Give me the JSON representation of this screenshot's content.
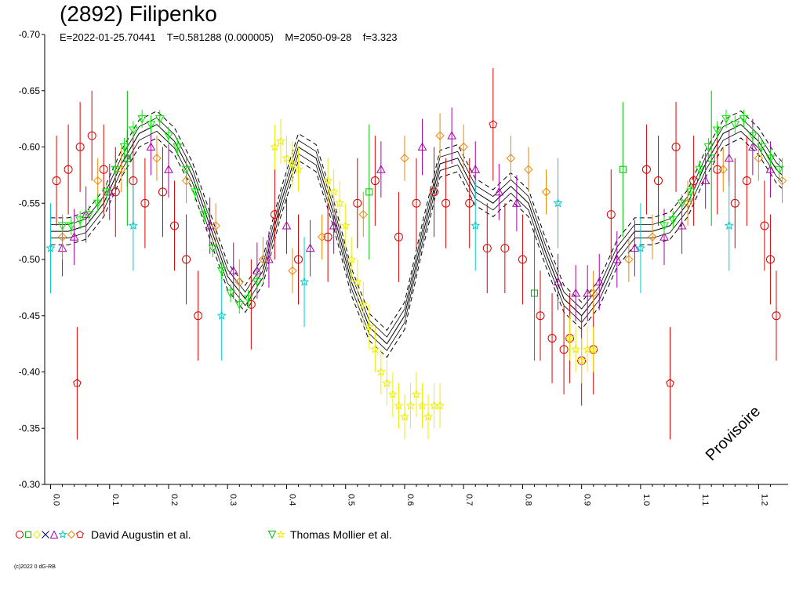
{
  "header": {
    "title": "(2892) Filipenko",
    "subtitle": "E=2022-01-25.70441    T=0.581288 (0.000005)    M=2050-09-28    f=3.323"
  },
  "stamp": "Provisoire",
  "copyright": "(c)2022 0 dG-RB",
  "legend": [
    {
      "label": "David Augustin et al.",
      "markers": [
        "circle",
        "square",
        "diamond",
        "x",
        "triangle",
        "star",
        "diamond",
        "pentagon"
      ],
      "colors": [
        "#dd0000",
        "#00bb00",
        "#eeee00",
        "#000088",
        "#aa00aa",
        "#00cccc",
        "#ee8800",
        "#dd0000"
      ]
    },
    {
      "label": "Thomas Mollier et al.",
      "markers": [
        "triangle-down",
        "star"
      ],
      "colors": [
        "#00bb00",
        "#eeee00"
      ]
    }
  ],
  "chart_data": {
    "type": "scatter",
    "title": "(2892) Filipenko",
    "xlim": [
      -0.01,
      1.25
    ],
    "ylim": [
      -0.7,
      -0.3
    ],
    "y_inverted": true,
    "x_ticks": [
      "0.0",
      "0.1",
      "0.2",
      "0.3",
      "0.4",
      "0.5",
      "0.6",
      "0.7",
      "0.8",
      "0.9",
      "1.0",
      "1.1",
      "1.2"
    ],
    "y_ticks": [
      "-0.70",
      "-0.65",
      "-0.60",
      "-0.55",
      "-0.50",
      "-0.45",
      "-0.40",
      "-0.35",
      "-0.30"
    ],
    "model_curve": {
      "x": [
        0.0,
        0.03,
        0.06,
        0.09,
        0.12,
        0.15,
        0.18,
        0.21,
        0.24,
        0.27,
        0.3,
        0.33,
        0.36,
        0.39,
        0.42,
        0.45,
        0.48,
        0.51,
        0.54,
        0.57,
        0.6,
        0.63,
        0.66,
        0.69,
        0.72,
        0.75,
        0.78,
        0.81,
        0.84,
        0.87,
        0.9,
        0.93,
        0.96,
        0.99,
        1.02,
        1.05,
        1.08,
        1.11,
        1.14,
        1.17,
        1.2,
        1.23,
        1.24
      ],
      "y": [
        -0.525,
        -0.525,
        -0.53,
        -0.55,
        -0.585,
        -0.612,
        -0.62,
        -0.605,
        -0.575,
        -0.53,
        -0.485,
        -0.465,
        -0.49,
        -0.55,
        -0.6,
        -0.59,
        -0.54,
        -0.48,
        -0.44,
        -0.425,
        -0.45,
        -0.52,
        -0.585,
        -0.59,
        -0.56,
        -0.55,
        -0.565,
        -0.55,
        -0.505,
        -0.465,
        -0.45,
        -0.47,
        -0.505,
        -0.525,
        -0.525,
        -0.53,
        -0.55,
        -0.585,
        -0.612,
        -0.62,
        -0.605,
        -0.58,
        -0.575
      ],
      "band": 0.012
    },
    "series": [
      {
        "name": "David Augustin et al.",
        "color": "#dd0000",
        "marker": "circle",
        "x": [
          0.01,
          0.03,
          0.05,
          0.07,
          0.09,
          0.11,
          0.14,
          0.16,
          0.19,
          0.21,
          0.23,
          0.25,
          0.34,
          0.38,
          0.42,
          0.47,
          0.52,
          0.55,
          0.59,
          0.62,
          0.65,
          0.67,
          0.71,
          0.74,
          0.77,
          0.8,
          0.83,
          0.85,
          0.87,
          0.88,
          0.9,
          0.92,
          0.95,
          1.01,
          1.03,
          1.06,
          1.09,
          1.13,
          1.16,
          1.18,
          1.21,
          1.22,
          1.23
        ],
        "y": [
          -0.57,
          -0.58,
          -0.6,
          -0.61,
          -0.58,
          -0.56,
          -0.57,
          -0.55,
          -0.56,
          -0.53,
          -0.5,
          -0.45,
          -0.46,
          -0.54,
          -0.5,
          -0.52,
          -0.55,
          -0.57,
          -0.52,
          -0.55,
          -0.56,
          -0.55,
          -0.55,
          -0.51,
          -0.51,
          -0.5,
          -0.45,
          -0.43,
          -0.42,
          -0.43,
          -0.41,
          -0.42,
          -0.54,
          -0.58,
          -0.57,
          -0.6,
          -0.57,
          -0.58,
          -0.55,
          -0.57,
          -0.53,
          -0.5,
          -0.45
        ],
        "err": 0.04
      },
      {
        "name": "David Augustin et al. (pentagon)",
        "color": "#dd0000",
        "marker": "pentagon",
        "x": [
          0.045,
          0.75,
          1.05
        ],
        "y": [
          -0.39,
          -0.62,
          -0.39
        ],
        "err": 0.05
      },
      {
        "name": "David Augustin et al. (triangle)",
        "color": "#aa00aa",
        "marker": "triangle",
        "x": [
          0.02,
          0.04,
          0.06,
          0.1,
          0.13,
          0.17,
          0.2,
          0.27,
          0.31,
          0.35,
          0.37,
          0.4,
          0.44,
          0.48,
          0.56,
          0.63,
          0.68,
          0.72,
          0.76,
          0.79,
          0.86,
          0.89,
          0.91,
          0.93,
          0.96,
          0.99,
          1.04,
          1.07,
          1.11,
          1.15,
          1.19,
          1.22
        ],
        "y": [
          -0.51,
          -0.52,
          -0.54,
          -0.56,
          -0.59,
          -0.6,
          -0.58,
          -0.53,
          -0.49,
          -0.49,
          -0.5,
          -0.53,
          -0.51,
          -0.53,
          -0.58,
          -0.6,
          -0.61,
          -0.58,
          -0.56,
          -0.55,
          -0.48,
          -0.47,
          -0.47,
          -0.48,
          -0.5,
          -0.51,
          -0.52,
          -0.53,
          -0.57,
          -0.59,
          -0.6,
          -0.58
        ],
        "err": 0.025
      },
      {
        "name": "David Augustin et al. (diamond)",
        "color": "#ee8800",
        "marker": "diamond",
        "x": [
          0.02,
          0.08,
          0.12,
          0.18,
          0.23,
          0.28,
          0.32,
          0.36,
          0.41,
          0.46,
          0.53,
          0.6,
          0.66,
          0.7,
          0.78,
          0.81,
          0.84,
          0.92,
          0.98,
          1.02,
          1.08,
          1.14,
          1.2,
          1.24
        ],
        "y": [
          -0.52,
          -0.57,
          -0.58,
          -0.59,
          -0.57,
          -0.53,
          -0.48,
          -0.5,
          -0.49,
          -0.52,
          -0.54,
          -0.59,
          -0.61,
          -0.6,
          -0.59,
          -0.58,
          -0.56,
          -0.47,
          -0.5,
          -0.52,
          -0.55,
          -0.58,
          -0.59,
          -0.57
        ],
        "err": 0.02
      },
      {
        "name": "David Augustin et al. (star)",
        "color": "#00cccc",
        "marker": "star",
        "x": [
          0.0,
          0.14,
          0.29,
          0.43,
          0.72,
          0.86,
          1.0,
          1.15
        ],
        "y": [
          -0.51,
          -0.53,
          -0.45,
          -0.48,
          -0.53,
          -0.55,
          -0.51,
          -0.53
        ],
        "err": 0.04
      },
      {
        "name": "David Augustin et al. (square)",
        "color": "#00bb00",
        "marker": "square",
        "x": [
          0.13,
          0.54,
          0.82,
          0.97,
          1.12
        ],
        "y": [
          -0.59,
          -0.56,
          -0.47,
          -0.58,
          -0.59
        ],
        "err": 0.06
      },
      {
        "name": "Thomas Mollier et al.",
        "color": "#00ee00",
        "marker": "triangle-down",
        "x": [
          0.02,
          0.035,
          0.05,
          0.065,
          0.08,
          0.095,
          0.11,
          0.125,
          0.14,
          0.155,
          0.17,
          0.185,
          0.2,
          0.215,
          0.23,
          0.245,
          0.26,
          0.275,
          0.29,
          0.305,
          0.32,
          0.335,
          0.35,
          1.04,
          1.055,
          1.07,
          1.085,
          1.1,
          1.115,
          1.13,
          1.145,
          1.16,
          1.175,
          1.19,
          1.205,
          1.22,
          1.235
        ],
        "y": [
          -0.53,
          -0.53,
          -0.535,
          -0.54,
          -0.55,
          -0.56,
          -0.58,
          -0.6,
          -0.615,
          -0.625,
          -0.62,
          -0.625,
          -0.61,
          -0.6,
          -0.58,
          -0.56,
          -0.54,
          -0.51,
          -0.49,
          -0.47,
          -0.46,
          -0.465,
          -0.48,
          -0.53,
          -0.535,
          -0.55,
          -0.56,
          -0.58,
          -0.6,
          -0.615,
          -0.625,
          -0.62,
          -0.625,
          -0.61,
          -0.6,
          -0.59,
          -0.58
        ],
        "err": 0.008
      },
      {
        "name": "Thomas Mollier et al. (star)",
        "color": "#eeee00",
        "marker": "star",
        "x": [
          0.38,
          0.39,
          0.4,
          0.41,
          0.42,
          0.47,
          0.48,
          0.49,
          0.5,
          0.51,
          0.52,
          0.53,
          0.54,
          0.55,
          0.56,
          0.57,
          0.58,
          0.59,
          0.6,
          0.61,
          0.62,
          0.63,
          0.64,
          0.65,
          0.66,
          0.88,
          0.89,
          0.9,
          0.91,
          0.92
        ],
        "y": [
          -0.6,
          -0.605,
          -0.59,
          -0.585,
          -0.58,
          -0.57,
          -0.56,
          -0.55,
          -0.53,
          -0.5,
          -0.48,
          -0.46,
          -0.44,
          -0.42,
          -0.4,
          -0.39,
          -0.38,
          -0.37,
          -0.36,
          -0.37,
          -0.38,
          -0.37,
          -0.36,
          -0.37,
          -0.37,
          -0.43,
          -0.42,
          -0.41,
          -0.42,
          -0.42
        ],
        "err": 0.02
      }
    ]
  }
}
